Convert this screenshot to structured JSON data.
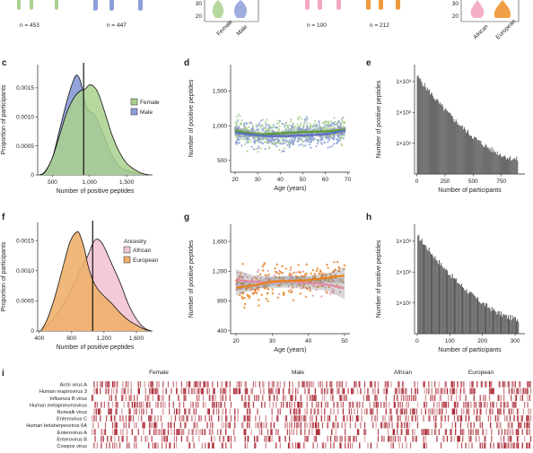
{
  "colors": {
    "female": "#a9d18e",
    "female_line": "#5a9e3c",
    "male": "#8e9fd8",
    "male_line": "#5b6fc4",
    "african": "#f2c7d4",
    "african_line": "#e08aa5",
    "european": "#eeb06c",
    "european_line": "#e8811e",
    "heat": "#a51c28",
    "bar": "#4a4a4a"
  },
  "top": {
    "counts": [
      "n = 453",
      "n = 447",
      "n = 100",
      "n = 212"
    ],
    "panel_b_ticks": [
      "30",
      "20"
    ],
    "panel_b_labels": [
      "Female",
      "Male"
    ],
    "panel_right_ticks": [
      "30",
      "20"
    ],
    "panel_right_labels": [
      "African",
      "European"
    ]
  },
  "chart_data": [
    {
      "panel": "c",
      "type": "area",
      "xlabel": "Number of positive peptides",
      "ylabel": "Proportion of participants",
      "xticks": [
        "500",
        "1,000",
        "1,500"
      ],
      "yticks": [
        "0",
        "0.0005",
        "0.0010",
        "0.0015"
      ],
      "xlim": [
        300,
        1850
      ],
      "ylim": [
        0,
        0.0019
      ],
      "vline": 920,
      "series": [
        {
          "name": "Female",
          "x": [
            330,
            400,
            500,
            600,
            700,
            800,
            880,
            940,
            1000,
            1060,
            1120,
            1200,
            1300,
            1400,
            1500,
            1600,
            1700,
            1800
          ],
          "values": [
            0,
            5e-05,
            0.0003,
            0.0007,
            0.0011,
            0.00135,
            0.00145,
            0.00148,
            0.00155,
            0.00152,
            0.0014,
            0.0011,
            0.0007,
            0.0004,
            0.0002,
            0.0001,
            3e-05,
            0
          ]
        },
        {
          "name": "Male",
          "x": [
            330,
            400,
            500,
            600,
            700,
            780,
            830,
            880,
            950,
            1000,
            1060,
            1120,
            1200,
            1300,
            1400,
            1500,
            1600,
            1700,
            1800
          ],
          "values": [
            0,
            6e-05,
            0.0003,
            0.0008,
            0.0013,
            0.00162,
            0.00172,
            0.0016,
            0.0012,
            0.0011,
            0.00105,
            0.0009,
            0.00065,
            0.00035,
            0.00015,
            8e-05,
            4e-05,
            2e-05,
            0
          ]
        }
      ]
    },
    {
      "panel": "d",
      "type": "scatter",
      "xlabel": "Age (years)",
      "ylabel": "Number of positive peptides",
      "xticks": [
        "20",
        "30",
        "40",
        "50",
        "60",
        "70"
      ],
      "yticks": [
        "500",
        "1,000",
        "1,500"
      ],
      "xlim": [
        18,
        71
      ],
      "ylim": [
        330,
        1880
      ],
      "series": [
        {
          "name": "Female",
          "trend_x": [
            20,
            30,
            40,
            50,
            60,
            69
          ],
          "trend": [
            930,
            880,
            890,
            910,
            920,
            940
          ]
        },
        {
          "name": "Male",
          "trend_x": [
            20,
            30,
            40,
            50,
            60,
            69
          ],
          "trend": [
            900,
            860,
            850,
            860,
            880,
            930
          ]
        }
      ]
    },
    {
      "panel": "e",
      "type": "bar",
      "xlabel": "Number of participants",
      "ylabel": "Number of positive peptides",
      "xticks": [
        "0",
        "250",
        "500",
        "750"
      ],
      "ytick_labels": [
        "1×10³",
        "1×10²",
        "1×10¹"
      ],
      "xlim": [
        -20,
        960
      ],
      "log_scale": true,
      "decay": {
        "start_value": 1500,
        "start_x": 1,
        "end_x": 900,
        "end_value": 3
      }
    },
    {
      "panel": "f",
      "type": "area",
      "xlabel": "Number of positive peptides",
      "ylabel": "Proportion of participants",
      "legend_title": "Ancestry",
      "xticks": [
        "400",
        "800",
        "1,200",
        "1,600"
      ],
      "yticks": [
        "0",
        "0.0005",
        "0.0010",
        "0.0015"
      ],
      "xlim": [
        380,
        1800
      ],
      "ylim": [
        0,
        0.0018
      ],
      "vline": 1060,
      "series": [
        {
          "name": "African",
          "x": [
            420,
            500,
            600,
            700,
            800,
            900,
            1000,
            1060,
            1100,
            1150,
            1200,
            1300,
            1400,
            1500,
            1600,
            1700,
            1780
          ],
          "values": [
            0,
            0.0001,
            0.00025,
            0.00045,
            0.0007,
            0.001,
            0.00125,
            0.00145,
            0.00152,
            0.0015,
            0.0014,
            0.0011,
            0.0008,
            0.00045,
            0.0002,
            5e-05,
            0
          ]
        },
        {
          "name": "European",
          "x": [
            420,
            500,
            600,
            700,
            780,
            860,
            900,
            960,
            1000,
            1060,
            1120,
            1200,
            1300,
            1400,
            1500,
            1600,
            1700,
            1780
          ],
          "values": [
            0,
            0.0002,
            0.0006,
            0.0011,
            0.00148,
            0.00164,
            0.0016,
            0.00135,
            0.0011,
            0.00085,
            0.0007,
            0.00058,
            0.00045,
            0.0003,
            0.00018,
            0.0001,
            3e-05,
            0
          ]
        }
      ]
    },
    {
      "panel": "g",
      "type": "scatter",
      "xlabel": "Age (years)",
      "ylabel": "Number of positive peptides",
      "xticks": [
        "20",
        "30",
        "40",
        "50"
      ],
      "yticks": [
        "400",
        "800",
        "1,200",
        "1,600"
      ],
      "xlim": [
        18.5,
        51.5
      ],
      "ylim": [
        360,
        1830
      ],
      "series": [
        {
          "name": "African",
          "trend_x": [
            20,
            25,
            30,
            35,
            40,
            45,
            50
          ],
          "trend": [
            1080,
            1060,
            1050,
            1060,
            1040,
            1020,
            970
          ]
        },
        {
          "name": "European",
          "trend_x": [
            20,
            25,
            30,
            35,
            40,
            45,
            50
          ],
          "trend": [
            980,
            1010,
            1060,
            1070,
            1080,
            1110,
            1140
          ]
        }
      ]
    },
    {
      "panel": "h",
      "type": "bar",
      "xlabel": "Number of participants",
      "ylabel": "Number of positive peptides",
      "xticks": [
        "0",
        "100",
        "200",
        "300"
      ],
      "ytick_labels": [
        "1×10³",
        "1×10²",
        "1×10¹"
      ],
      "xlim": [
        -8,
        330
      ],
      "log_scale": true,
      "decay": {
        "start_value": 1500,
        "start_x": 1,
        "end_x": 312,
        "end_value": 3
      }
    },
    {
      "panel": "i",
      "type": "heatmap",
      "groups": [
        "Female",
        "Male",
        "African",
        "European"
      ],
      "rows": [
        "Aichi virus A",
        "Human respirovirus 3",
        "Influenza B virus",
        "Human metapneumovirus",
        "Norwalk virus",
        "Enterovirus C",
        "Human betaherpesvirus 6A",
        "Enterovirus A",
        "Enterovirus B",
        "Cowpox virus"
      ]
    }
  ]
}
